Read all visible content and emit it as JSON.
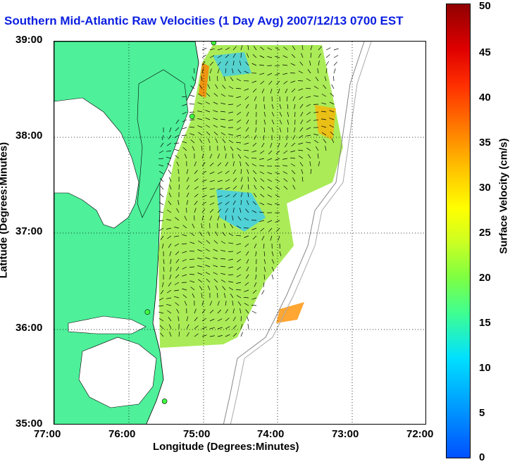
{
  "title": "Southern Mid-Atlantic Raw Velocities (1 Day Avg) 2007/12/13 0700 EST",
  "xlabel": "Longitude (Degrees:Minutes)",
  "ylabel": "Latitude (Degrees:Minutes)",
  "x_ticks": [
    "77:00",
    "76:00",
    "75:00",
    "74:00",
    "73:00",
    "72:00"
  ],
  "y_ticks": [
    "39:00",
    "38:00",
    "37:00",
    "36:00",
    "35:00"
  ],
  "colorbar": {
    "label": "Surface Velocity (cm/s)",
    "ticks": [
      "0",
      "5",
      "10",
      "15",
      "20",
      "25",
      "30",
      "35",
      "40",
      "45",
      "50"
    ],
    "range": [
      0,
      50
    ]
  },
  "colors": {
    "land": "#4ef09a",
    "coast": "#000000",
    "grid": "#000000",
    "title": "#0a1ee0"
  },
  "radar_sites": [
    {
      "lon": -74.86,
      "lat": 38.99
    },
    {
      "lon": -75.15,
      "lat": 38.22
    },
    {
      "lon": -75.75,
      "lat": 36.18
    },
    {
      "lon": -75.52,
      "lat": 35.25
    }
  ]
}
